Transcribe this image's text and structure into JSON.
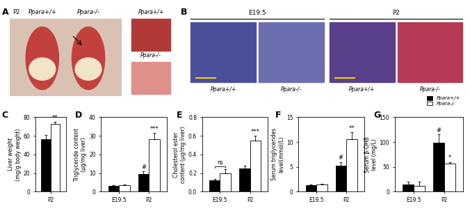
{
  "panels": [
    {
      "label": "A",
      "texts": [
        "P2",
        "Ppara+/+",
        "Ppara-/-"
      ],
      "liver_labels": [
        "Ppara+/+",
        "Ppara-/-"
      ]
    },
    {
      "label": "B",
      "stages": [
        {
          "name": "E19.5",
          "tiles": [
            "Ppara+/+",
            "Ppara-/-"
          ]
        },
        {
          "name": "P2",
          "tiles": [
            "Ppara+/+",
            "Ppara-/-"
          ]
        }
      ]
    }
  ],
  "chart_data": [
    {
      "label": "C",
      "type": "bar",
      "y_label": "Liver weight\n(mg/g body weight)",
      "categories": [
        "P2"
      ],
      "series": [
        {
          "color": "#000000",
          "values": [
            56
          ],
          "errors": [
            5
          ],
          "marks": [
            null
          ]
        },
        {
          "color": "#ffffff",
          "values": [
            73
          ],
          "errors": [
            2
          ],
          "marks": [
            "**"
          ]
        }
      ],
      "ylim": [
        0,
        80
      ],
      "yticks": [
        0,
        20,
        40,
        60,
        80
      ]
    },
    {
      "label": "D",
      "type": "bar",
      "y_label": "Triglyceride content\n(μg/mg liver)",
      "categories": [
        "E19.5",
        "P2"
      ],
      "series": [
        {
          "color": "#000000",
          "values": [
            3,
            9.5
          ],
          "errors": [
            0.5,
            1.5
          ],
          "marks": [
            null,
            "#"
          ]
        },
        {
          "color": "#ffffff",
          "values": [
            3.5,
            28
          ],
          "errors": [
            0.5,
            3.5
          ],
          "marks": [
            null,
            "***"
          ]
        }
      ],
      "ylim": [
        0,
        40
      ],
      "yticks": [
        0,
        10,
        20,
        30,
        40
      ]
    },
    {
      "label": "E",
      "type": "bar",
      "y_label": "Cholesterol ester\ncontent (μg/mg liver)",
      "categories": [
        "E19.5",
        "P2"
      ],
      "series": [
        {
          "color": "#000000",
          "values": [
            0.12,
            0.25
          ],
          "errors": [
            0.02,
            0.03
          ],
          "marks": [
            null,
            null
          ]
        },
        {
          "color": "#ffffff",
          "values": [
            0.2,
            0.55
          ],
          "errors": [
            0.04,
            0.05
          ],
          "marks": [
            null,
            "***"
          ]
        }
      ],
      "annotations": [
        {
          "text": "ns",
          "category": "E19.5"
        }
      ],
      "ylim": [
        0.0,
        0.8
      ],
      "yticks": [
        0.0,
        0.2,
        0.4,
        0.6,
        0.8
      ]
    },
    {
      "label": "F",
      "type": "bar",
      "y_label": "Serum triglycerides\nlevel(mmol/L)",
      "categories": [
        "E19.5",
        "P2"
      ],
      "series": [
        {
          "color": "#000000",
          "values": [
            1.3,
            5.2
          ],
          "errors": [
            0.2,
            0.8
          ],
          "marks": [
            null,
            "#"
          ]
        },
        {
          "color": "#ffffff",
          "values": [
            1.4,
            10.5
          ],
          "errors": [
            0.2,
            1.5
          ],
          "marks": [
            null,
            "**"
          ]
        }
      ],
      "ylim": [
        0,
        15
      ],
      "yticks": [
        0,
        5,
        10,
        15
      ]
    },
    {
      "label": "G",
      "type": "bar",
      "y_label": "Serum β-OHB\nlevel (mg/L)",
      "categories": [
        "E19.5",
        "P2"
      ],
      "series": [
        {
          "name": "Ppara+/+",
          "color": "#000000",
          "values": [
            15,
            98
          ],
          "errors": [
            5,
            18
          ],
          "marks": [
            null,
            "#"
          ]
        },
        {
          "name": "Ppara-/-",
          "color": "#ffffff",
          "values": [
            12,
            57
          ],
          "errors": [
            8,
            3
          ],
          "marks": [
            null,
            "*"
          ]
        }
      ],
      "legend": "upper right",
      "ylim": [
        0,
        150
      ],
      "yticks": [
        0,
        50,
        100,
        150
      ]
    }
  ]
}
